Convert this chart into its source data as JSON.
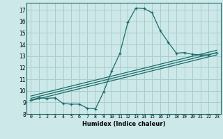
{
  "title": "",
  "xlabel": "Humidex (Indice chaleur)",
  "ylabel": "",
  "xlim": [
    -0.5,
    23.5
  ],
  "ylim": [
    8.0,
    17.6
  ],
  "xticks": [
    0,
    1,
    2,
    3,
    4,
    5,
    6,
    7,
    8,
    9,
    10,
    11,
    12,
    13,
    14,
    15,
    16,
    17,
    18,
    19,
    20,
    21,
    22,
    23
  ],
  "yticks": [
    8,
    9,
    10,
    11,
    12,
    13,
    14,
    15,
    16,
    17
  ],
  "bg_color": "#cce8e8",
  "line_color": "#1a6b6b",
  "grid_color": "#aacccc",
  "main_curve_x": [
    0,
    1,
    2,
    3,
    4,
    5,
    6,
    7,
    8,
    9,
    10,
    11,
    12,
    13,
    14,
    15,
    16,
    17,
    18,
    19,
    20,
    21,
    22,
    23
  ],
  "main_curve_y": [
    9.2,
    9.4,
    9.35,
    9.4,
    8.9,
    8.85,
    8.85,
    8.5,
    8.45,
    9.9,
    11.7,
    13.2,
    15.9,
    17.15,
    17.1,
    16.75,
    15.2,
    14.2,
    13.25,
    13.3,
    13.15,
    13.1,
    13.1,
    13.3
  ],
  "line1_x": [
    0,
    23
  ],
  "line1_y": [
    9.15,
    13.1
  ],
  "line2_x": [
    0,
    23
  ],
  "line2_y": [
    9.35,
    13.3
  ],
  "line3_x": [
    0,
    23
  ],
  "line3_y": [
    9.55,
    13.5
  ]
}
